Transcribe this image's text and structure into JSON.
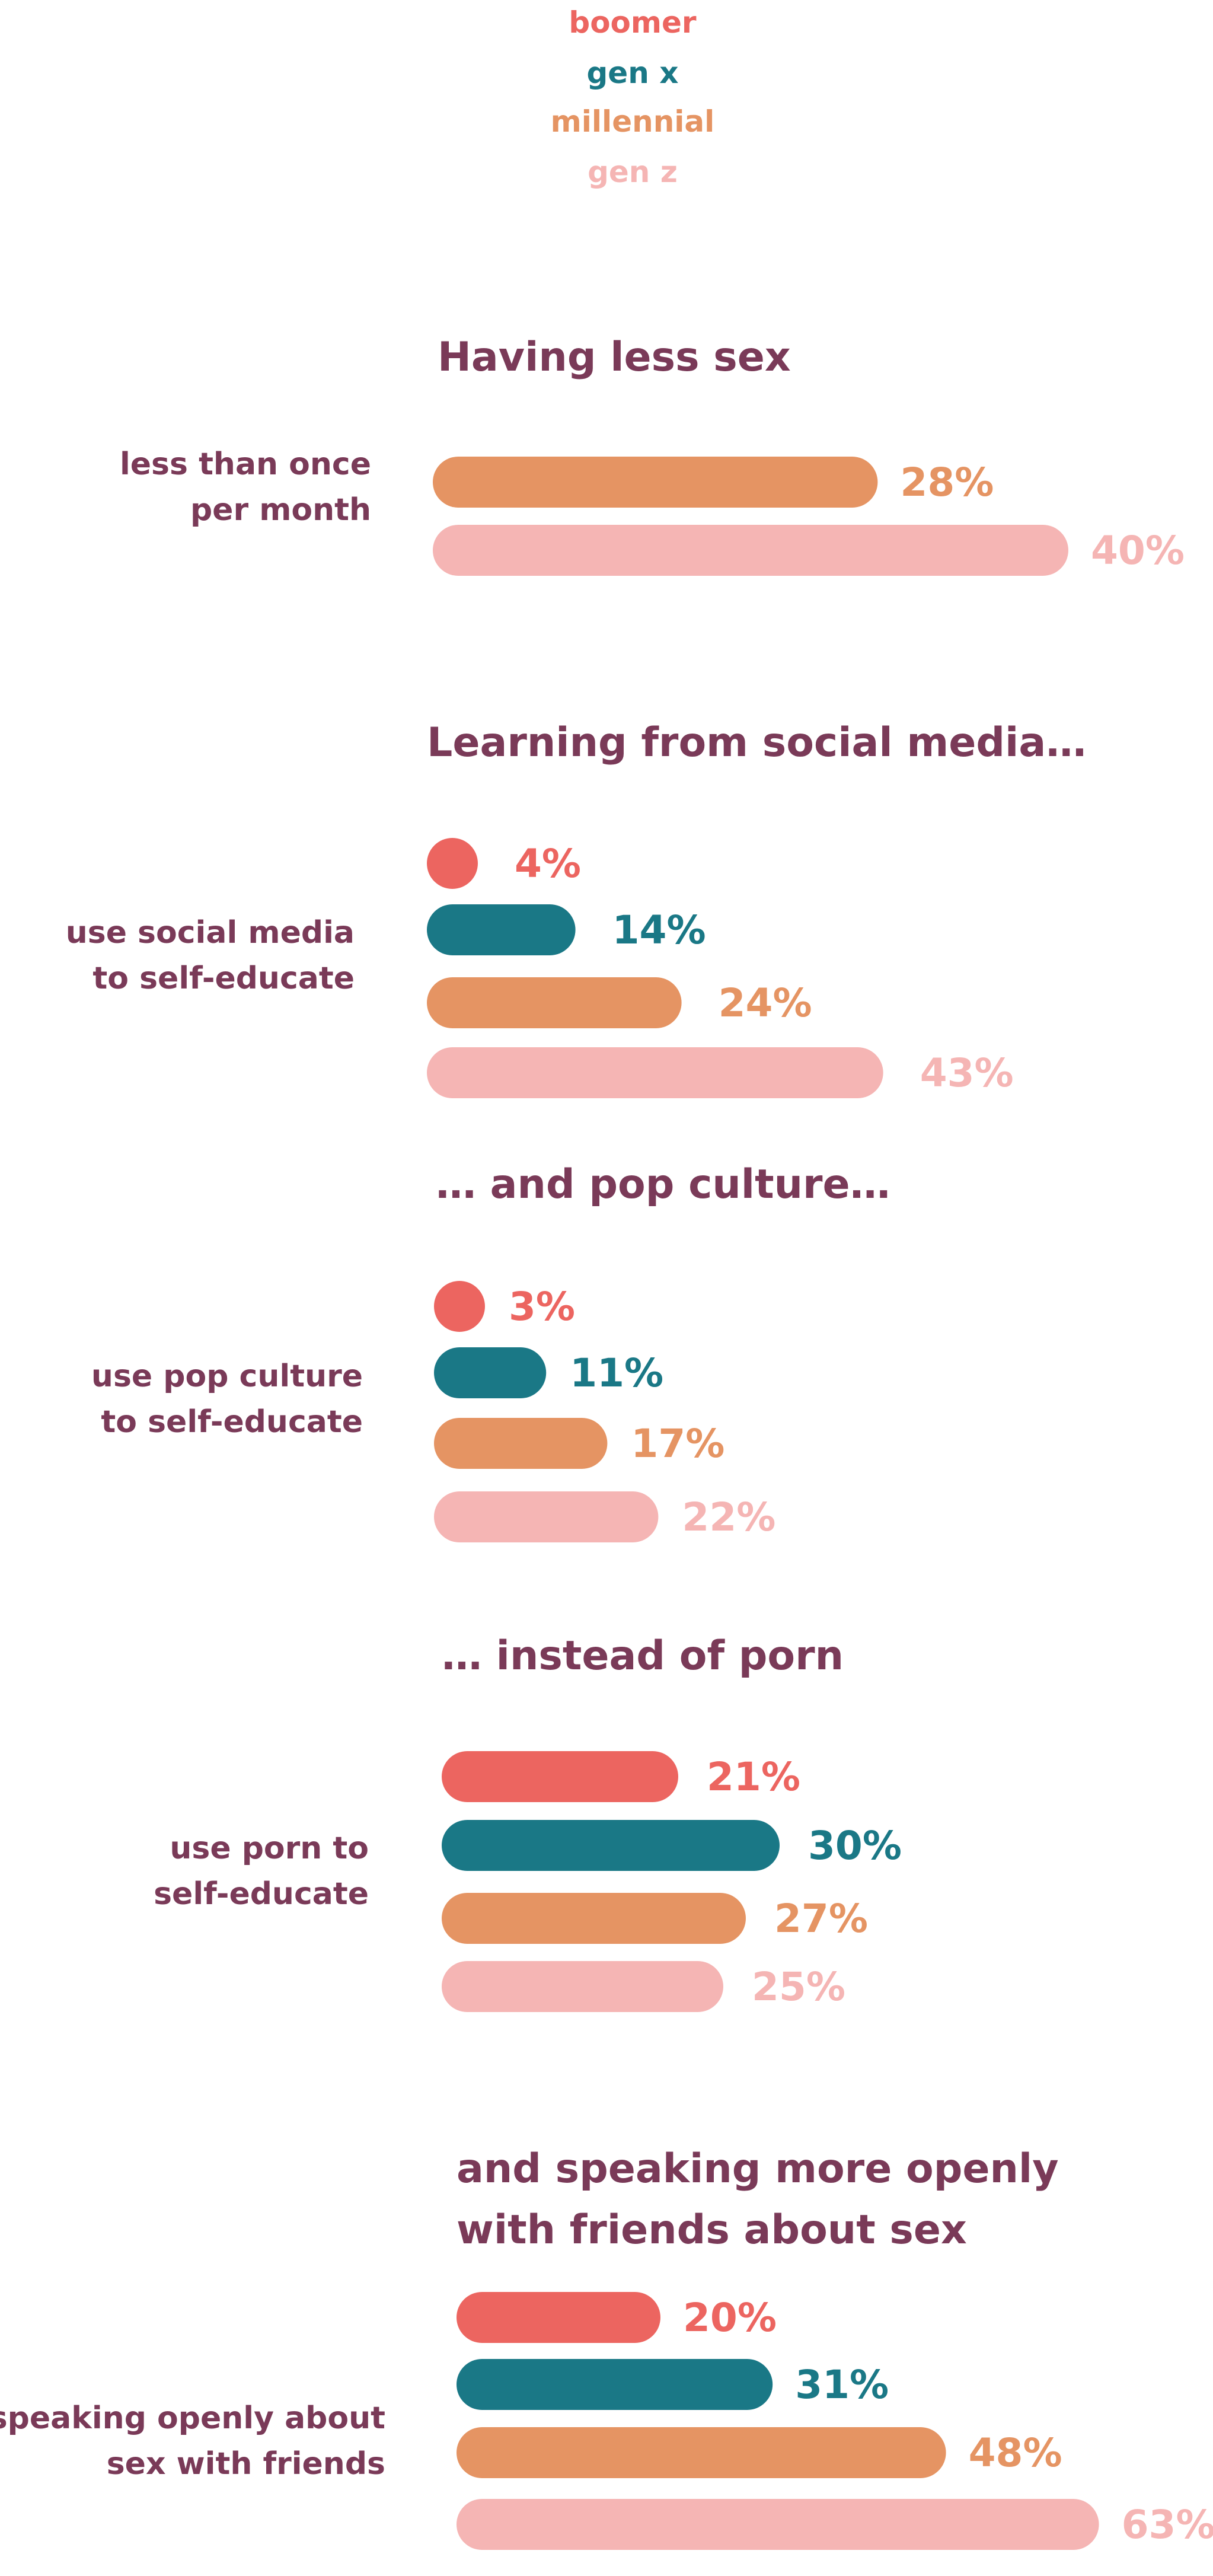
{
  "legend": [
    {
      "name": "boomer",
      "color": "#ec6560"
    },
    {
      "name": "gen x",
      "color": "#1a7886"
    },
    {
      "name": "millennial",
      "color": "#e59463"
    },
    {
      "name": "gen z",
      "color": "#f5b5b4"
    }
  ],
  "colors": {
    "title": "#7a3a58"
  },
  "chart_data": [
    {
      "type": "bar",
      "title": "Having less sex",
      "categories": [
        "less than once per month"
      ],
      "series": [
        {
          "name": "millennial",
          "values": [
            28
          ]
        },
        {
          "name": "gen z",
          "values": [
            40
          ]
        }
      ],
      "value_labels": [
        "28%",
        "40%"
      ]
    },
    {
      "type": "bar",
      "title": "Learning from social media…",
      "categories": [
        "use social media to self-educate"
      ],
      "series": [
        {
          "name": "boomer",
          "values": [
            4
          ]
        },
        {
          "name": "gen x",
          "values": [
            14
          ]
        },
        {
          "name": "millennial",
          "values": [
            24
          ]
        },
        {
          "name": "gen z",
          "values": [
            43
          ]
        }
      ],
      "value_labels": [
        "4%",
        "14%",
        "24%",
        "43%"
      ]
    },
    {
      "type": "bar",
      "title": "… and pop culture…",
      "categories": [
        "use pop culture to self-educate"
      ],
      "series": [
        {
          "name": "boomer",
          "values": [
            3
          ]
        },
        {
          "name": "gen x",
          "values": [
            11
          ]
        },
        {
          "name": "millennial",
          "values": [
            17
          ]
        },
        {
          "name": "gen z",
          "values": [
            22
          ]
        }
      ],
      "value_labels": [
        "3%",
        "11%",
        "17%",
        "22%"
      ]
    },
    {
      "type": "bar",
      "title": "… instead of porn",
      "categories": [
        "use porn to self-educate"
      ],
      "series": [
        {
          "name": "boomer",
          "values": [
            21
          ]
        },
        {
          "name": "gen x",
          "values": [
            30
          ]
        },
        {
          "name": "millennial",
          "values": [
            27
          ]
        },
        {
          "name": "gen z",
          "values": [
            25
          ]
        }
      ],
      "value_labels": [
        "21%",
        "30%",
        "27%",
        "25%"
      ]
    },
    {
      "type": "bar",
      "title": "and speaking more openly with friends about sex",
      "categories": [
        "speaking openly about sex with friends"
      ],
      "series": [
        {
          "name": "boomer",
          "values": [
            20
          ]
        },
        {
          "name": "gen x",
          "values": [
            31
          ]
        },
        {
          "name": "millennial",
          "values": [
            48
          ]
        },
        {
          "name": "gen z",
          "values": [
            63
          ]
        }
      ],
      "value_labels": [
        "20%",
        "31%",
        "48%",
        "63%"
      ]
    }
  ],
  "section_text": [
    {
      "title_lines": [
        "Having less sex"
      ],
      "label_lines": [
        "less than once",
        "per month"
      ]
    },
    {
      "title_lines": [
        "Learning from social media…"
      ],
      "label_lines": [
        "use social media",
        "to self-educate"
      ]
    },
    {
      "title_lines": [
        "… and pop culture…"
      ],
      "label_lines": [
        "use pop culture",
        "to self-educate"
      ]
    },
    {
      "title_lines": [
        "… instead of porn"
      ],
      "label_lines": [
        "use porn to",
        "self-educate"
      ]
    },
    {
      "title_lines": [
        "and speaking more openly",
        "with friends about sex"
      ],
      "label_lines": [
        "speaking openly about",
        "sex with friends"
      ]
    }
  ]
}
